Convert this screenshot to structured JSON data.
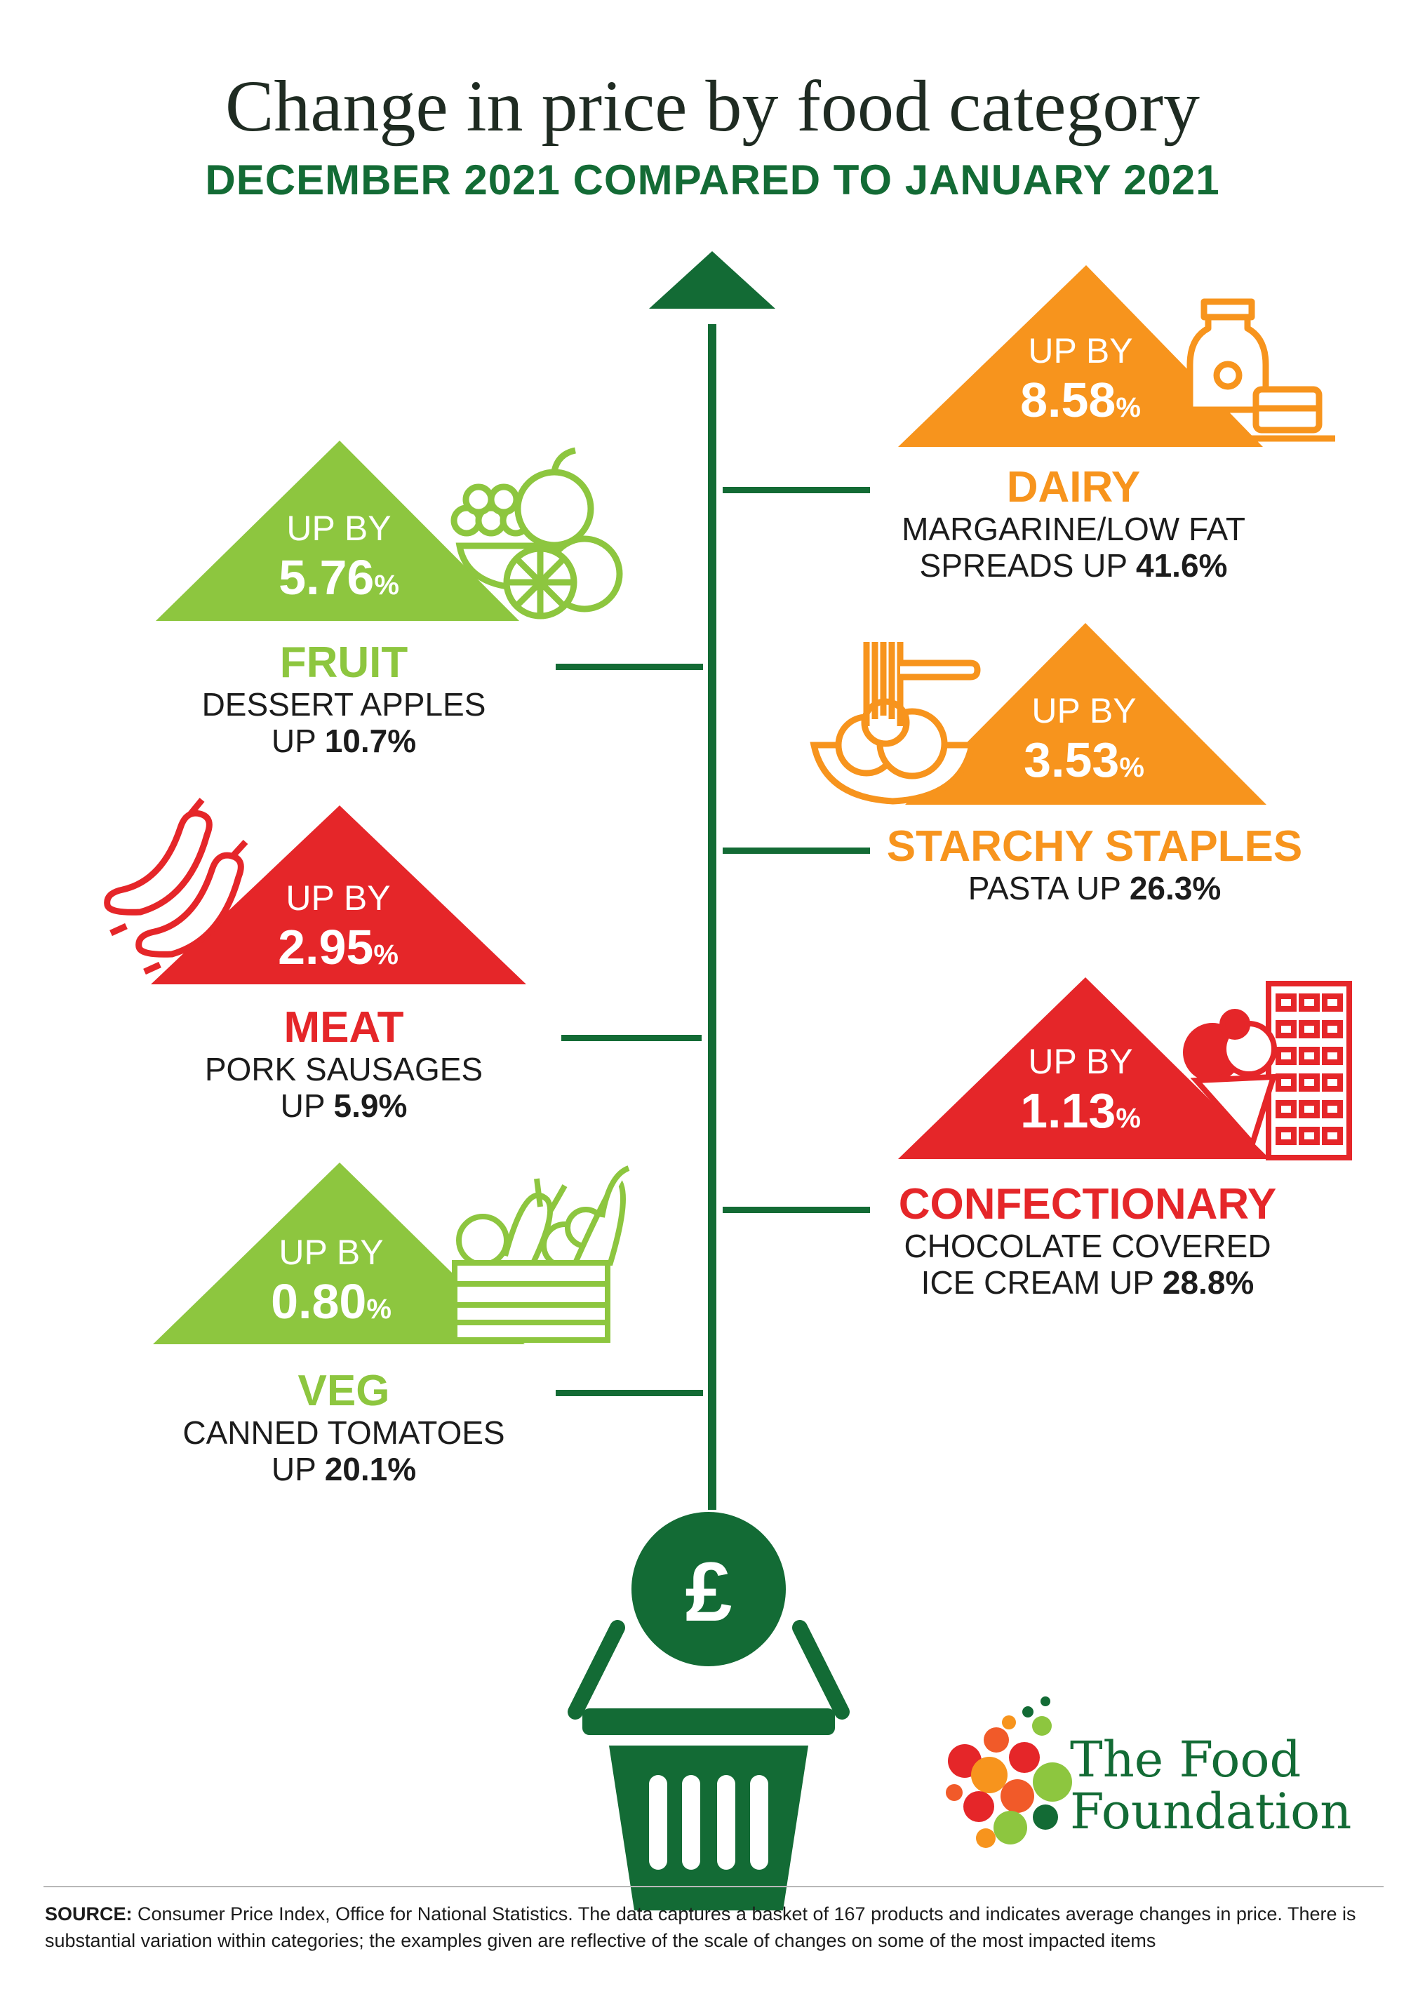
{
  "title": "Change in price by food category",
  "subtitle": "DECEMBER 2021 COMPARED TO JANUARY 2021",
  "colors": {
    "green_dark": "#136b35",
    "green_light": "#8dc63f",
    "orange": "#f7941d",
    "red": "#e52629"
  },
  "categories": [
    {
      "id": "dairy",
      "up_by_label": "UP BY",
      "change_value": "8.58",
      "change_unit": "%",
      "name": "DAIRY",
      "example_line1": "MARGARINE/LOW FAT",
      "example_prefix": "SPREADS UP",
      "example_value": "41.6%",
      "color": "#f7941d",
      "icon": "milk-and-butter-icon"
    },
    {
      "id": "fruit",
      "up_by_label": "UP BY",
      "change_value": "5.76",
      "change_unit": "%",
      "name": "FRUIT",
      "example_line1": "DESSERT APPLES",
      "example_prefix": "UP",
      "example_value": "10.7%",
      "color": "#8dc63f",
      "icon": "fruit-bowl-icon"
    },
    {
      "id": "starchy",
      "up_by_label": "UP BY",
      "change_value": "3.53",
      "change_unit": "%",
      "name": "STARCHY STAPLES",
      "example_line1": "",
      "example_prefix": "PASTA UP",
      "example_value": "26.3%",
      "color": "#f7941d",
      "icon": "pasta-bowl-icon"
    },
    {
      "id": "meat",
      "up_by_label": "UP BY",
      "change_value": "2.95",
      "change_unit": "%",
      "name": "MEAT",
      "example_line1": "PORK SAUSAGES",
      "example_prefix": "UP",
      "example_value": "5.9%",
      "color": "#e52629",
      "icon": "sausages-icon"
    },
    {
      "id": "confectionary",
      "up_by_label": "UP BY",
      "change_value": "1.13",
      "change_unit": "%",
      "name": "CONFECTIONARY",
      "example_line1": "CHOCOLATE COVERED",
      "example_prefix": "ICE CREAM UP",
      "example_value": "28.8%",
      "color": "#e52629",
      "icon": "chocolate-and-ice-cream-icon"
    },
    {
      "id": "veg",
      "up_by_label": "UP BY",
      "change_value": "0.80",
      "change_unit": "%",
      "name": "VEG",
      "example_line1": "CANNED TOMATOES",
      "example_prefix": "UP",
      "example_value": "20.1%",
      "color": "#8dc63f",
      "icon": "vegetable-crate-icon"
    }
  ],
  "basket": {
    "currency_symbol": "£",
    "icon": "shopping-basket-icon"
  },
  "logo": {
    "line1": "The Food",
    "line2": "Foundation",
    "icon": "fruit-dots-logo"
  },
  "source": {
    "label": "SOURCE:",
    "text": "Consumer Price Index, Office for National Statistics. The data captures a basket of 167 products and indicates average changes in price. There is substantial variation within categories; the examples given are reflective of the scale of changes on some of the most impacted items"
  }
}
